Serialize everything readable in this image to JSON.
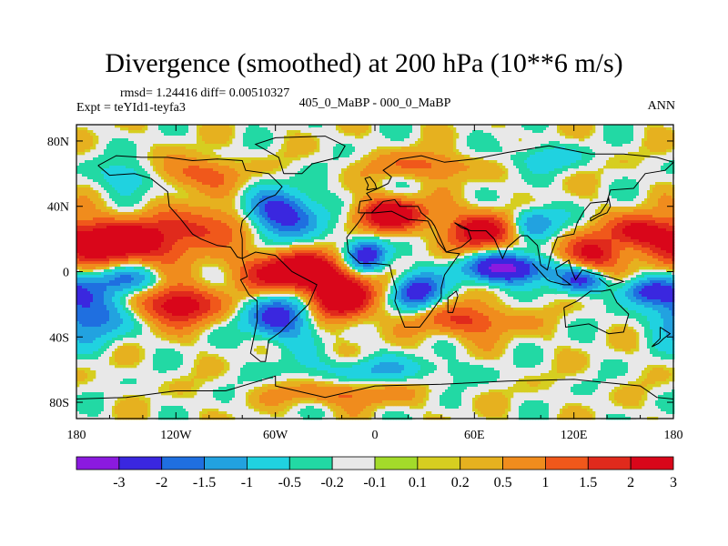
{
  "title": "Divergence (smoothed) at 200 hPa (10**6 m/s)",
  "stats_line": "rmsd= 1.24416 diff= 0.00510327",
  "experiment_line": "Expt = teYId1-teyfa3",
  "difference_label": "405_0_MaBP - 000_0_MaBP",
  "season_label": "ANN",
  "colors": {
    "palette": [
      "#8b1adf",
      "#3a27df",
      "#1f6fe0",
      "#22a2e0",
      "#20d2e0",
      "#22d9a4",
      "#e8e8e8",
      "#a3db2a",
      "#d6ce20",
      "#e6b11f",
      "#f08c1d",
      "#f0581b",
      "#e02a1c",
      "#d9061a"
    ]
  },
  "chart_data": {
    "type": "heatmap",
    "projection": "cylindrical-equidistant",
    "variable": "Divergence (smoothed) at 200 hPa",
    "units": "10**6 m/s",
    "xlim": [
      -180,
      180
    ],
    "ylim": [
      -90,
      90
    ],
    "x_ticks": [
      {
        "value": -180,
        "label": "180"
      },
      {
        "value": -120,
        "label": "120W"
      },
      {
        "value": -60,
        "label": "60W"
      },
      {
        "value": 0,
        "label": "0"
      },
      {
        "value": 60,
        "label": "60E"
      },
      {
        "value": 120,
        "label": "120E"
      },
      {
        "value": 180,
        "label": "180"
      }
    ],
    "y_ticks": [
      {
        "value": 80,
        "label": "80N"
      },
      {
        "value": 40,
        "label": "40N"
      },
      {
        "value": 0,
        "label": "0"
      },
      {
        "value": -40,
        "label": "40S"
      },
      {
        "value": -80,
        "label": "80S"
      }
    ],
    "contour_levels": [
      "-3",
      "-2",
      "-1.5",
      "-1",
      "-0.5",
      "-0.2",
      "-0.1",
      "0.1",
      "0.2",
      "0.5",
      "1",
      "1.5",
      "2",
      "3"
    ],
    "level_values": [
      -3,
      -2,
      -1.5,
      -1,
      -0.5,
      -0.2,
      -0.1,
      0.1,
      0.2,
      0.5,
      1,
      1.5,
      2,
      3
    ],
    "features": [
      {
        "lon": -155,
        "lat": 18,
        "value": 3.2,
        "rlon": 38,
        "rlat": 14
      },
      {
        "lon": -170,
        "lat": -25,
        "value": -2.2,
        "rlon": 22,
        "rlat": 16
      },
      {
        "lon": -150,
        "lat": -5,
        "value": -1.8,
        "rlon": 20,
        "rlat": 9
      },
      {
        "lon": -120,
        "lat": -20,
        "value": 2.6,
        "rlon": 26,
        "rlat": 12
      },
      {
        "lon": -100,
        "lat": 28,
        "value": 1.5,
        "rlon": 25,
        "rlat": 12
      },
      {
        "lon": -110,
        "lat": 60,
        "value": 1.4,
        "rlon": 26,
        "rlat": 10
      },
      {
        "lon": -145,
        "lat": 58,
        "value": -1.2,
        "rlon": 18,
        "rlat": 10
      },
      {
        "lon": -55,
        "lat": 35,
        "value": -2.6,
        "rlon": 22,
        "rlat": 14
      },
      {
        "lon": -58,
        "lat": -28,
        "value": -2.4,
        "rlon": 20,
        "rlat": 14
      },
      {
        "lon": -50,
        "lat": 0,
        "value": 3.3,
        "rlon": 28,
        "rlat": 12
      },
      {
        "lon": -20,
        "lat": -15,
        "value": 3.1,
        "rlon": 20,
        "rlat": 14
      },
      {
        "lon": -5,
        "lat": 10,
        "value": -2.7,
        "rlon": 12,
        "rlat": 10
      },
      {
        "lon": 25,
        "lat": -12,
        "value": -2.5,
        "rlon": 14,
        "rlat": 11
      },
      {
        "lon": 10,
        "lat": 35,
        "value": 2.8,
        "rlon": 22,
        "rlat": 10
      },
      {
        "lon": 65,
        "lat": 25,
        "value": 2.5,
        "rlon": 22,
        "rlat": 12
      },
      {
        "lon": 80,
        "lat": 2,
        "value": -3.3,
        "rlon": 26,
        "rlat": 9
      },
      {
        "lon": 95,
        "lat": 30,
        "value": -1.8,
        "rlon": 14,
        "rlat": 10
      },
      {
        "lon": 130,
        "lat": 10,
        "value": 2.2,
        "rlon": 18,
        "rlat": 12
      },
      {
        "lon": 125,
        "lat": -5,
        "value": -2.2,
        "rlon": 15,
        "rlat": 8
      },
      {
        "lon": 160,
        "lat": 25,
        "value": 2.0,
        "rlon": 18,
        "rlat": 10
      },
      {
        "lon": 165,
        "lat": -12,
        "value": -1.9,
        "rlon": 18,
        "rlat": 8
      },
      {
        "lon": 55,
        "lat": -30,
        "value": 1.6,
        "rlon": 30,
        "rlat": 10
      },
      {
        "lon": 0,
        "lat": -60,
        "value": -0.9,
        "rlon": 50,
        "rlat": 8
      },
      {
        "lon": 30,
        "lat": 65,
        "value": 1.2,
        "rlon": 30,
        "rlat": 8
      },
      {
        "lon": 100,
        "lat": 70,
        "value": -0.8,
        "rlon": 25,
        "rlat": 8
      },
      {
        "lon": -20,
        "lat": -75,
        "value": 1.1,
        "rlon": 40,
        "rlat": 7
      }
    ]
  }
}
